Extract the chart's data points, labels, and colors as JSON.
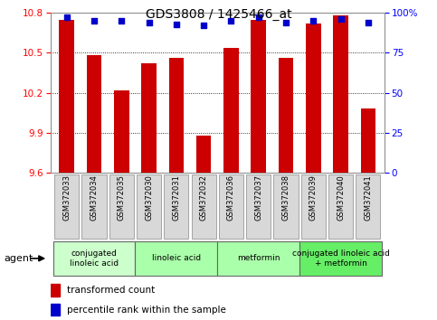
{
  "title": "GDS3808 / 1425466_at",
  "samples": [
    "GSM372033",
    "GSM372034",
    "GSM372035",
    "GSM372030",
    "GSM372031",
    "GSM372032",
    "GSM372036",
    "GSM372037",
    "GSM372038",
    "GSM372039",
    "GSM372040",
    "GSM372041"
  ],
  "bar_values": [
    10.75,
    10.48,
    10.22,
    10.42,
    10.46,
    9.88,
    10.54,
    10.75,
    10.46,
    10.72,
    10.78,
    10.08
  ],
  "dot_values": [
    97,
    95,
    95,
    94,
    93,
    92,
    95,
    97,
    94,
    95,
    96,
    94
  ],
  "ylim_left": [
    9.6,
    10.8
  ],
  "ylim_right": [
    0,
    100
  ],
  "yticks_left": [
    9.6,
    9.9,
    10.2,
    10.5,
    10.8
  ],
  "yticks_right": [
    0,
    25,
    50,
    75,
    100
  ],
  "bar_color": "#cc0000",
  "dot_color": "#0000cc",
  "plot_bg": "#ffffff",
  "agent_groups": [
    {
      "label": "conjugated\nlinoleic acid",
      "start": 0,
      "end": 3,
      "color": "#ccffcc"
    },
    {
      "label": "linoleic acid",
      "start": 3,
      "end": 6,
      "color": "#aaffaa"
    },
    {
      "label": "metformin",
      "start": 6,
      "end": 9,
      "color": "#aaffaa"
    },
    {
      "label": "conjugated linoleic acid\n+ metformin",
      "start": 9,
      "end": 12,
      "color": "#66ee66"
    }
  ],
  "xlabel_agent": "agent",
  "legend_bar": "transformed count",
  "legend_dot": "percentile rank within the sample"
}
